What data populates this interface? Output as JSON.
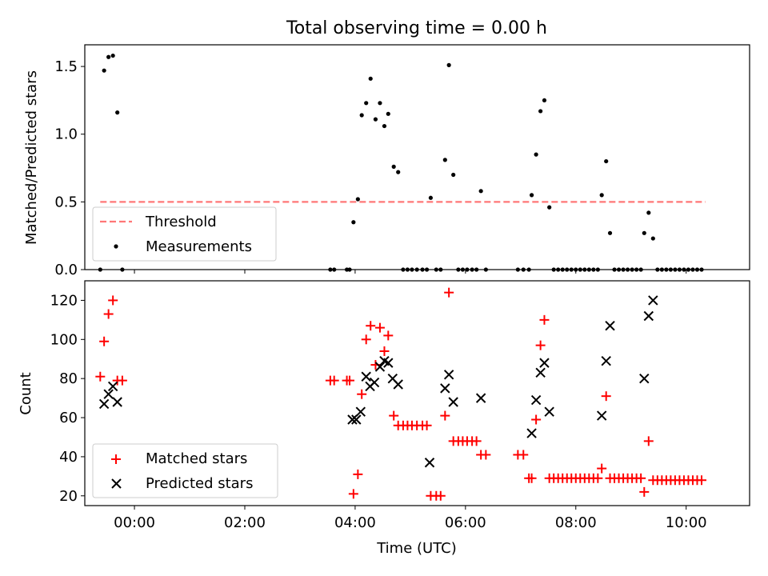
{
  "title": "Total observing time = 0.00 h",
  "chart_data": [
    {
      "type": "scatter",
      "ylabel": "Matched/Predicted stars",
      "xlabel": "",
      "xlim": [
        -0.9,
        11.15
      ],
      "ylim": [
        0,
        1.66
      ],
      "yticks": [
        0.0,
        0.5,
        1.0,
        1.5
      ],
      "ytick_labels": [
        "0.0",
        "0.5",
        "1.0",
        "1.5"
      ],
      "grid": false,
      "legend_position": "lower-left",
      "threshold": {
        "name": "Threshold",
        "value": 0.5,
        "x_range": [
          -0.62,
          10.35
        ],
        "color": "#ff7777",
        "style": "dashed"
      },
      "series": [
        {
          "name": "Measurements",
          "color": "#000000",
          "marker": "dot",
          "points": [
            [
              -0.62,
              0
            ],
            [
              -0.55,
              1.47
            ],
            [
              -0.47,
              1.57
            ],
            [
              -0.39,
              1.58
            ],
            [
              -0.31,
              1.16
            ],
            [
              -0.22,
              0
            ],
            [
              3.55,
              0
            ],
            [
              3.62,
              0
            ],
            [
              3.85,
              0
            ],
            [
              3.9,
              0
            ],
            [
              3.97,
              0.35
            ],
            [
              4.05,
              0.52
            ],
            [
              4.12,
              1.14
            ],
            [
              4.2,
              1.23
            ],
            [
              4.28,
              1.41
            ],
            [
              4.37,
              1.11
            ],
            [
              4.45,
              1.23
            ],
            [
              4.53,
              1.06
            ],
            [
              4.6,
              1.15
            ],
            [
              4.7,
              0.76
            ],
            [
              4.78,
              0.72
            ],
            [
              4.87,
              0
            ],
            [
              4.95,
              0
            ],
            [
              5.03,
              0
            ],
            [
              5.12,
              0
            ],
            [
              5.22,
              0
            ],
            [
              5.3,
              0
            ],
            [
              5.37,
              0.53
            ],
            [
              5.47,
              0
            ],
            [
              5.55,
              0
            ],
            [
              5.63,
              0.81
            ],
            [
              5.7,
              1.51
            ],
            [
              5.78,
              0.7
            ],
            [
              5.87,
              0
            ],
            [
              5.95,
              0
            ],
            [
              6.03,
              0
            ],
            [
              6.12,
              0
            ],
            [
              6.2,
              0
            ],
            [
              6.28,
              0.58
            ],
            [
              6.37,
              0
            ],
            [
              6.95,
              0
            ],
            [
              7.05,
              0
            ],
            [
              7.15,
              0
            ],
            [
              7.2,
              0.55
            ],
            [
              7.28,
              0.85
            ],
            [
              7.36,
              1.17
            ],
            [
              7.43,
              1.25
            ],
            [
              7.52,
              0.46
            ],
            [
              7.6,
              0
            ],
            [
              7.68,
              0
            ],
            [
              7.76,
              0
            ],
            [
              7.84,
              0
            ],
            [
              7.92,
              0
            ],
            [
              8.0,
              0
            ],
            [
              8.08,
              0
            ],
            [
              8.16,
              0
            ],
            [
              8.24,
              0
            ],
            [
              8.32,
              0
            ],
            [
              8.4,
              0
            ],
            [
              8.47,
              0.55
            ],
            [
              8.55,
              0.8
            ],
            [
              8.62,
              0.27
            ],
            [
              8.7,
              0
            ],
            [
              8.78,
              0
            ],
            [
              8.86,
              0
            ],
            [
              8.94,
              0
            ],
            [
              9.02,
              0
            ],
            [
              9.1,
              0
            ],
            [
              9.18,
              0
            ],
            [
              9.24,
              0.27
            ],
            [
              9.32,
              0.42
            ],
            [
              9.4,
              0.23
            ],
            [
              9.48,
              0
            ],
            [
              9.56,
              0
            ],
            [
              9.64,
              0
            ],
            [
              9.72,
              0
            ],
            [
              9.8,
              0
            ],
            [
              9.88,
              0
            ],
            [
              9.96,
              0
            ],
            [
              10.04,
              0
            ],
            [
              10.12,
              0
            ],
            [
              10.2,
              0
            ],
            [
              10.28,
              0
            ]
          ]
        }
      ]
    },
    {
      "type": "scatter",
      "ylabel": "Count",
      "xlabel": "Time (UTC)",
      "xlim": [
        -0.9,
        11.15
      ],
      "ylim": [
        15,
        130
      ],
      "yticks": [
        20,
        40,
        60,
        80,
        100,
        120
      ],
      "ytick_labels": [
        "20",
        "40",
        "60",
        "80",
        "100",
        "120"
      ],
      "xticks": [
        0,
        2,
        4,
        6,
        8,
        10
      ],
      "xtick_labels": [
        "00:00",
        "02:00",
        "04:00",
        "06:00",
        "08:00",
        "10:00"
      ],
      "grid": false,
      "legend_position": "lower-left",
      "series": [
        {
          "name": "Matched stars",
          "color": "#ff0000",
          "marker": "plus",
          "points": [
            [
              -0.62,
              81
            ],
            [
              -0.55,
              99
            ],
            [
              -0.47,
              113
            ],
            [
              -0.39,
              120
            ],
            [
              -0.31,
              79
            ],
            [
              -0.22,
              79
            ],
            [
              3.55,
              79
            ],
            [
              3.62,
              79
            ],
            [
              3.85,
              79
            ],
            [
              3.9,
              79
            ],
            [
              3.97,
              21
            ],
            [
              4.05,
              31
            ],
            [
              4.12,
              72
            ],
            [
              4.2,
              100
            ],
            [
              4.28,
              107
            ],
            [
              4.37,
              87
            ],
            [
              4.45,
              106
            ],
            [
              4.53,
              94
            ],
            [
              4.6,
              102
            ],
            [
              4.7,
              61
            ],
            [
              4.78,
              56
            ],
            [
              4.87,
              56
            ],
            [
              4.95,
              56
            ],
            [
              5.03,
              56
            ],
            [
              5.12,
              56
            ],
            [
              5.22,
              56
            ],
            [
              5.3,
              56
            ],
            [
              5.37,
              20
            ],
            [
              5.47,
              20
            ],
            [
              5.55,
              20
            ],
            [
              5.63,
              61
            ],
            [
              5.7,
              124
            ],
            [
              5.78,
              48
            ],
            [
              5.87,
              48
            ],
            [
              5.95,
              48
            ],
            [
              6.03,
              48
            ],
            [
              6.12,
              48
            ],
            [
              6.2,
              48
            ],
            [
              6.28,
              41
            ],
            [
              6.37,
              41
            ],
            [
              6.95,
              41
            ],
            [
              7.05,
              41
            ],
            [
              7.15,
              29
            ],
            [
              7.2,
              29
            ],
            [
              7.28,
              59
            ],
            [
              7.36,
              97
            ],
            [
              7.43,
              110
            ],
            [
              7.52,
              29
            ],
            [
              7.6,
              29
            ],
            [
              7.68,
              29
            ],
            [
              7.76,
              29
            ],
            [
              7.84,
              29
            ],
            [
              7.92,
              29
            ],
            [
              8.0,
              29
            ],
            [
              8.08,
              29
            ],
            [
              8.16,
              29
            ],
            [
              8.24,
              29
            ],
            [
              8.32,
              29
            ],
            [
              8.4,
              29
            ],
            [
              8.47,
              34
            ],
            [
              8.55,
              71
            ],
            [
              8.62,
              29
            ],
            [
              8.7,
              29
            ],
            [
              8.78,
              29
            ],
            [
              8.86,
              29
            ],
            [
              8.94,
              29
            ],
            [
              9.02,
              29
            ],
            [
              9.1,
              29
            ],
            [
              9.18,
              29
            ],
            [
              9.24,
              22
            ],
            [
              9.32,
              48
            ],
            [
              9.4,
              28
            ],
            [
              9.48,
              28
            ],
            [
              9.56,
              28
            ],
            [
              9.64,
              28
            ],
            [
              9.72,
              28
            ],
            [
              9.8,
              28
            ],
            [
              9.88,
              28
            ],
            [
              9.96,
              28
            ],
            [
              10.04,
              28
            ],
            [
              10.12,
              28
            ],
            [
              10.2,
              28
            ],
            [
              10.28,
              28
            ]
          ]
        },
        {
          "name": "Predicted stars",
          "color": "#000000",
          "marker": "x",
          "points": [
            [
              -0.55,
              67
            ],
            [
              -0.47,
              72
            ],
            [
              -0.39,
              76
            ],
            [
              -0.31,
              68
            ],
            [
              3.95,
              59
            ],
            [
              4.02,
              59
            ],
            [
              4.1,
              63
            ],
            [
              4.2,
              81
            ],
            [
              4.27,
              76
            ],
            [
              4.35,
              78
            ],
            [
              4.45,
              86
            ],
            [
              4.53,
              89
            ],
            [
              4.6,
              88
            ],
            [
              4.68,
              80
            ],
            [
              4.78,
              77
            ],
            [
              5.35,
              37
            ],
            [
              5.63,
              75
            ],
            [
              5.7,
              82
            ],
            [
              5.78,
              68
            ],
            [
              6.28,
              70
            ],
            [
              7.2,
              52
            ],
            [
              7.28,
              69
            ],
            [
              7.36,
              83
            ],
            [
              7.43,
              88
            ],
            [
              7.52,
              63
            ],
            [
              8.47,
              61
            ],
            [
              8.55,
              89
            ],
            [
              8.62,
              107
            ],
            [
              9.24,
              80
            ],
            [
              9.32,
              112
            ],
            [
              9.4,
              120
            ]
          ]
        }
      ]
    }
  ]
}
